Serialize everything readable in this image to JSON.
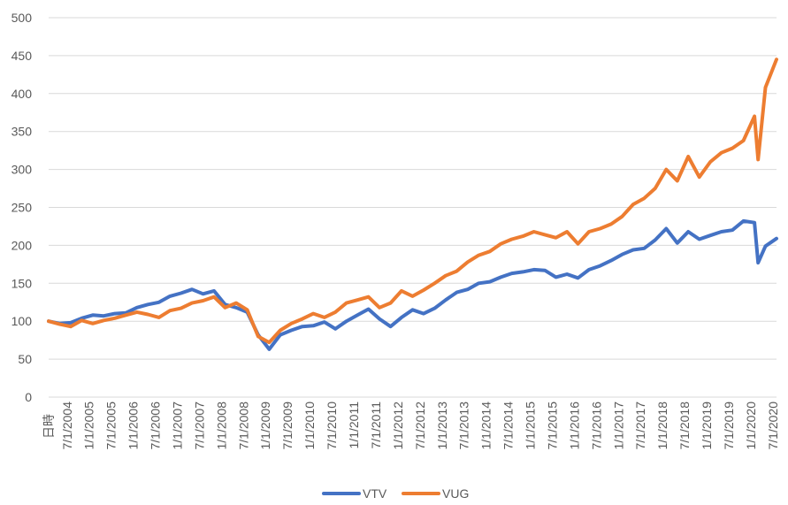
{
  "chart_data": {
    "type": "line",
    "xlabel": "日時",
    "ylabel": "",
    "ylim": [
      0,
      500
    ],
    "yticks": [
      0,
      50,
      100,
      150,
      200,
      250,
      300,
      350,
      400,
      450,
      500
    ],
    "xticks": [
      "7/1/2004",
      "1/1/2005",
      "7/1/2005",
      "1/1/2006",
      "7/1/2006",
      "1/1/2007",
      "7/1/2007",
      "1/1/2008",
      "7/1/2008",
      "1/1/2009",
      "7/1/2009",
      "1/1/2010",
      "7/1/2010",
      "1/1/2011",
      "7/1/2011",
      "1/1/2012",
      "7/1/2012",
      "1/1/2013",
      "7/1/2013",
      "1/1/2014",
      "7/1/2014",
      "1/1/2015",
      "7/1/2015",
      "1/1/2016",
      "7/1/2016",
      "1/1/2017",
      "7/1/2017",
      "1/1/2018",
      "7/1/2018",
      "1/1/2019",
      "7/1/2019",
      "1/1/2020",
      "7/1/2020"
    ],
    "x_start": "2004-02",
    "x_end": "2020-08",
    "gridlines": "horizontal",
    "legend_position": "bottom",
    "series": [
      {
        "name": "VTV",
        "color": "#4472C4",
        "x": [
          "2004-02",
          "2004-05",
          "2004-08",
          "2004-11",
          "2005-02",
          "2005-05",
          "2005-08",
          "2005-11",
          "2006-02",
          "2006-05",
          "2006-08",
          "2006-11",
          "2007-02",
          "2007-05",
          "2007-08",
          "2007-11",
          "2008-02",
          "2008-05",
          "2008-08",
          "2008-11",
          "2009-02",
          "2009-05",
          "2009-08",
          "2009-11",
          "2010-02",
          "2010-05",
          "2010-08",
          "2010-11",
          "2011-02",
          "2011-05",
          "2011-08",
          "2011-11",
          "2012-02",
          "2012-05",
          "2012-08",
          "2012-11",
          "2013-02",
          "2013-05",
          "2013-08",
          "2013-11",
          "2014-02",
          "2014-05",
          "2014-08",
          "2014-11",
          "2015-02",
          "2015-05",
          "2015-08",
          "2015-11",
          "2016-02",
          "2016-05",
          "2016-08",
          "2016-11",
          "2017-02",
          "2017-05",
          "2017-08",
          "2017-11",
          "2018-02",
          "2018-05",
          "2018-08",
          "2018-11",
          "2019-02",
          "2019-05",
          "2019-08",
          "2019-11",
          "2020-02",
          "2020-03",
          "2020-05",
          "2020-08"
        ],
        "values": [
          100,
          97,
          98,
          104,
          108,
          107,
          110,
          111,
          118,
          122,
          125,
          133,
          137,
          142,
          136,
          140,
          122,
          118,
          112,
          82,
          63,
          82,
          88,
          93,
          94,
          99,
          90,
          100,
          108,
          116,
          103,
          93,
          105,
          115,
          110,
          117,
          128,
          138,
          142,
          150,
          152,
          158,
          163,
          165,
          168,
          167,
          158,
          162,
          157,
          168,
          173,
          180,
          188,
          194,
          196,
          207,
          222,
          203,
          218,
          208,
          213,
          218,
          220,
          232,
          230,
          177,
          199,
          209
        ]
      },
      {
        "name": "VUG",
        "color": "#ED7D31",
        "x": [
          "2004-02",
          "2004-05",
          "2004-08",
          "2004-11",
          "2005-02",
          "2005-05",
          "2005-08",
          "2005-11",
          "2006-02",
          "2006-05",
          "2006-08",
          "2006-11",
          "2007-02",
          "2007-05",
          "2007-08",
          "2007-11",
          "2008-02",
          "2008-05",
          "2008-08",
          "2008-11",
          "2009-02",
          "2009-05",
          "2009-08",
          "2009-11",
          "2010-02",
          "2010-05",
          "2010-08",
          "2010-11",
          "2011-02",
          "2011-05",
          "2011-08",
          "2011-11",
          "2012-02",
          "2012-05",
          "2012-08",
          "2012-11",
          "2013-02",
          "2013-05",
          "2013-08",
          "2013-11",
          "2014-02",
          "2014-05",
          "2014-08",
          "2014-11",
          "2015-02",
          "2015-05",
          "2015-08",
          "2015-11",
          "2016-02",
          "2016-05",
          "2016-08",
          "2016-11",
          "2017-02",
          "2017-05",
          "2017-08",
          "2017-11",
          "2018-02",
          "2018-05",
          "2018-08",
          "2018-11",
          "2019-02",
          "2019-05",
          "2019-08",
          "2019-11",
          "2020-02",
          "2020-03",
          "2020-05",
          "2020-08"
        ],
        "values": [
          100,
          96,
          93,
          101,
          97,
          101,
          104,
          108,
          112,
          109,
          105,
          114,
          117,
          124,
          127,
          132,
          118,
          124,
          115,
          80,
          72,
          88,
          97,
          103,
          110,
          105,
          112,
          124,
          128,
          132,
          118,
          124,
          140,
          133,
          141,
          150,
          160,
          166,
          178,
          187,
          192,
          202,
          208,
          212,
          218,
          214,
          210,
          218,
          202,
          218,
          222,
          228,
          238,
          254,
          262,
          275,
          300,
          285,
          317,
          290,
          310,
          322,
          328,
          338,
          370,
          313,
          408,
          445
        ]
      }
    ]
  }
}
